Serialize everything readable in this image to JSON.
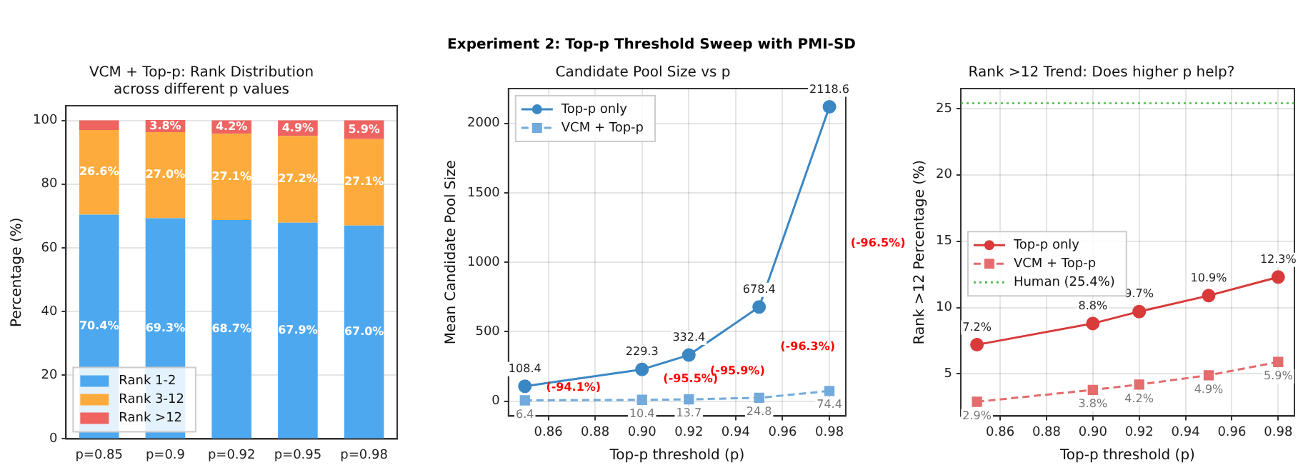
{
  "chart_data": [
    {
      "type": "other",
      "title": "Experiment 2: Top-p Threshold Sweep with PMI-SD"
    },
    {
      "type": "bar",
      "title": "VCM + Top-p: Rank Distribution\nacross different p values",
      "ylabel": "Percentage (%)",
      "categories": [
        "p=0.85",
        "p=0.9",
        "p=0.92",
        "p=0.95",
        "p=0.98"
      ],
      "stacked": true,
      "series": [
        {
          "name": "Rank 1-2",
          "color": "#4ea8f0",
          "values": [
            70.4,
            69.3,
            68.7,
            67.9,
            67.0
          ],
          "value_labels": [
            "70.4%",
            "69.3%",
            "68.7%",
            "67.9%",
            "67.0%"
          ]
        },
        {
          "name": "Rank 3-12",
          "color": "#fdab3c",
          "values": [
            26.6,
            27.0,
            27.1,
            27.2,
            27.1
          ],
          "value_labels": [
            "26.6%",
            "27.0%",
            "27.1%",
            "27.2%",
            "27.1%"
          ]
        },
        {
          "name": "Rank >12",
          "color": "#ef6360",
          "values": [
            3.0,
            3.8,
            4.2,
            4.9,
            5.9
          ],
          "value_labels": [
            null,
            "3.8%",
            "4.2%",
            "4.9%",
            "5.9%"
          ]
        }
      ],
      "ylim": [
        0,
        104.6
      ],
      "yticks": [
        0,
        20,
        40,
        60,
        80,
        100
      ],
      "grid": "y",
      "legend": "bottom left"
    },
    {
      "type": "line",
      "title": "Candidate Pool Size vs p",
      "xlabel": "Top-p threshold (p)",
      "ylabel": "Mean Candidate Pool Size",
      "x": [
        0.85,
        0.9,
        0.92,
        0.95,
        0.98
      ],
      "series": [
        {
          "name": "Top-p only",
          "color": "#3b87c4",
          "values": [
            108.4,
            229.3,
            332.4,
            678.4,
            2118.6
          ],
          "marker": "circle",
          "line_style": "solid"
        },
        {
          "name": "VCM + Top-p",
          "color": "#72aadc",
          "values": [
            6.4,
            10.4,
            13.7,
            24.8,
            74.4
          ],
          "marker": "square",
          "line_style": "dashed"
        }
      ],
      "data_labels": true,
      "annotations": [
        "(-94.1%)",
        "(-95.5%)",
        "(-95.9%)",
        "(-96.3%)",
        "(-96.5%)"
      ],
      "xlim": [
        0.843,
        0.987
      ],
      "xticks": [
        {
          "value": 0.86,
          "label": "0.86"
        },
        {
          "value": 0.88,
          "label": "0.88"
        },
        {
          "value": 0.9,
          "label": "0.90"
        },
        {
          "value": 0.92,
          "label": "0.92"
        },
        {
          "value": 0.94,
          "label": "0.94"
        },
        {
          "value": 0.96,
          "label": "0.96"
        },
        {
          "value": 0.98,
          "label": "0.98"
        }
      ],
      "ylim": [
        -106,
        2250
      ],
      "yticks": [
        0,
        500,
        1000,
        1500,
        2000
      ],
      "grid": true,
      "legend": "top left"
    },
    {
      "type": "line",
      "title": "Rank >12 Trend: Does higher p help?",
      "xlabel": "Top-p threshold (p)",
      "ylabel": "Rank >12 Percentage (%)",
      "x": [
        0.85,
        0.9,
        0.92,
        0.95,
        0.98
      ],
      "series": [
        {
          "name": "Top-p only",
          "color": "#d93a3a",
          "values": [
            7.2,
            8.8,
            9.7,
            10.9,
            12.3
          ],
          "marker": "circle",
          "line_style": "solid",
          "value_labels": [
            "7.2%",
            "8.8%",
            "9.7%",
            "10.9%",
            "12.3%"
          ]
        },
        {
          "name": "VCM + Top-p",
          "color": "#e46c6c",
          "values": [
            2.9,
            3.8,
            4.2,
            4.9,
            5.9
          ],
          "marker": "square",
          "line_style": "dashed",
          "value_labels": [
            "2.9%",
            "3.8%",
            "4.2%",
            "4.9%",
            "5.9%"
          ]
        }
      ],
      "ref_lines": [
        {
          "axis": "y",
          "value": 25.4,
          "label": "Human (25.4%)",
          "color": "#4cbb4c",
          "line_style": "dotted"
        }
      ],
      "xlim": [
        0.843,
        0.987
      ],
      "xticks": [
        {
          "value": 0.86,
          "label": "0.86"
        },
        {
          "value": 0.88,
          "label": "0.88"
        },
        {
          "value": 0.9,
          "label": "0.90"
        },
        {
          "value": 0.92,
          "label": "0.92"
        },
        {
          "value": 0.94,
          "label": "0.94"
        },
        {
          "value": 0.96,
          "label": "0.96"
        },
        {
          "value": 0.98,
          "label": "0.98"
        }
      ],
      "ylim": [
        1.83,
        26.5
      ],
      "yticks": [
        5,
        10,
        15,
        20,
        25
      ],
      "grid": true,
      "legend": "center left"
    }
  ]
}
